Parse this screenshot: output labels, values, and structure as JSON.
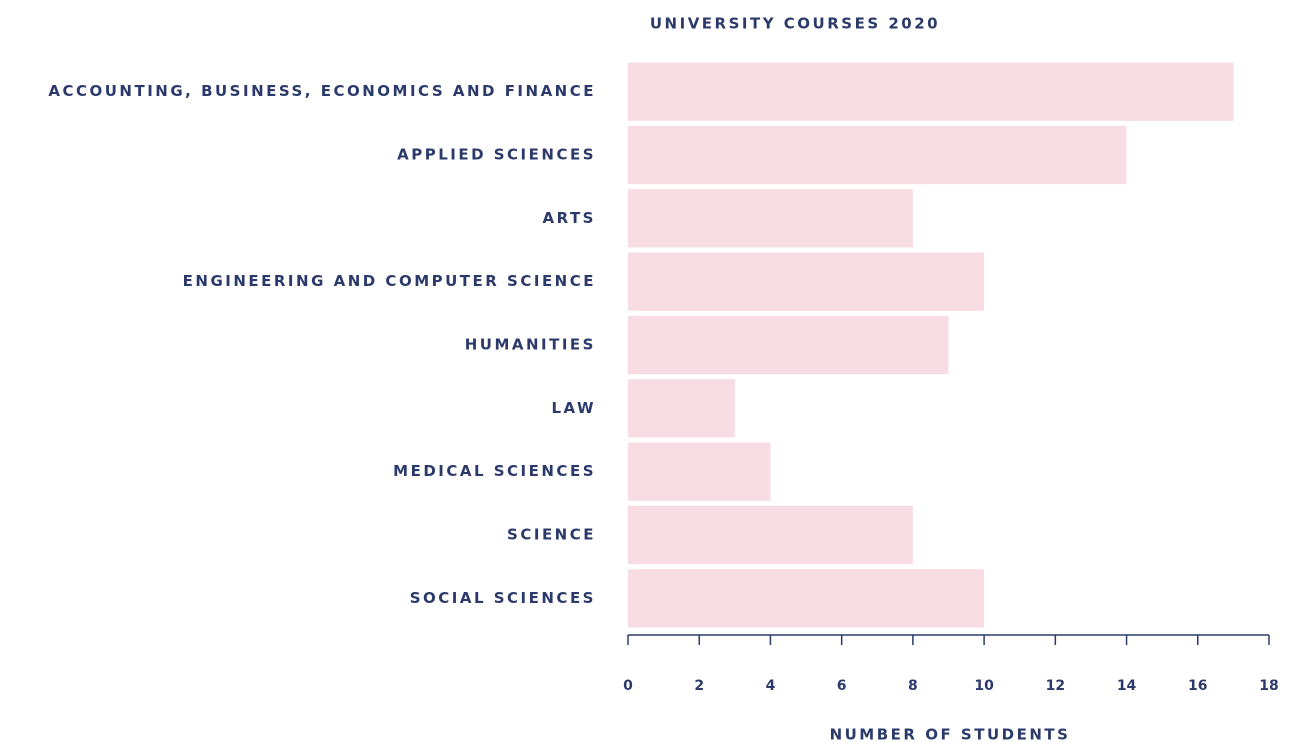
{
  "chart_data": {
    "type": "bar",
    "orientation": "horizontal",
    "title": "UNIVERSITY COURSES 2020",
    "categories": [
      "ACCOUNTING, BUSINESS, ECONOMICS AND FINANCE",
      "APPLIED SCIENCES",
      "ARTS",
      "ENGINEERING AND COMPUTER SCIENCE",
      "HUMANITIES",
      "LAW",
      "MEDICAL SCIENCES",
      "SCIENCE",
      "SOCIAL SCIENCES"
    ],
    "values": [
      17,
      14,
      8,
      10,
      9,
      3,
      4,
      8,
      10
    ],
    "color": "#f7dde3",
    "x_label": "NUMBER OF STUDENTS",
    "xlim": [
      0,
      18
    ],
    "xticks": [
      0,
      2,
      4,
      6,
      8,
      10,
      12,
      14,
      16,
      18
    ]
  }
}
